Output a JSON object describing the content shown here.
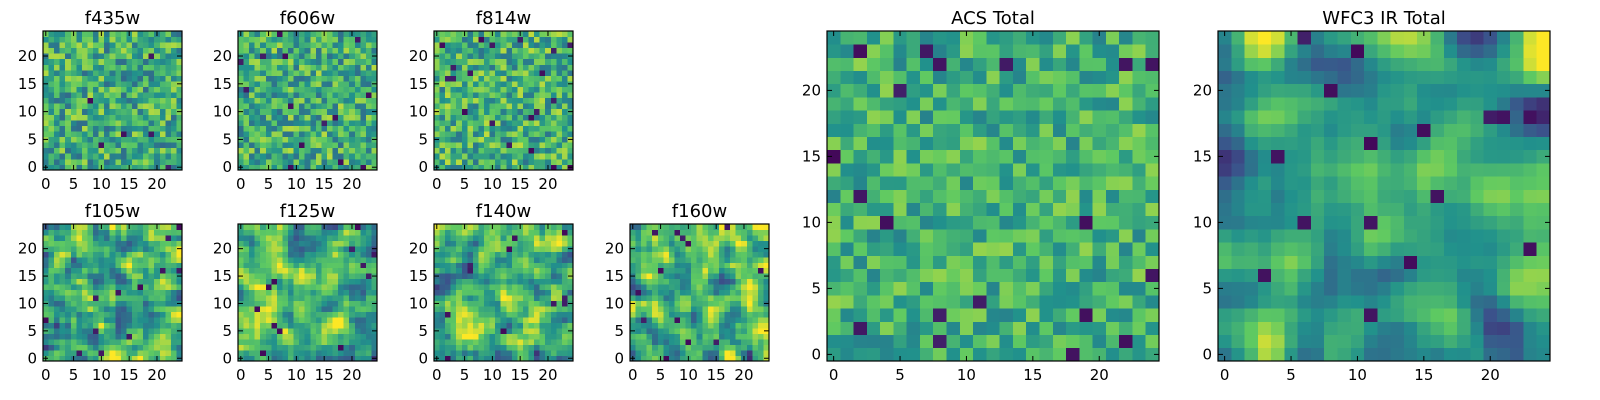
{
  "figure": {
    "background": "#ffffff",
    "colormap": "viridis",
    "colormap_stops": [
      "#440154",
      "#3b528b",
      "#21918c",
      "#5ec962",
      "#fde725"
    ]
  },
  "chart_data": [
    {
      "type": "heatmap",
      "title": "f435w",
      "rows": 25,
      "cols": 25,
      "xlim": [
        -0.5,
        24.5
      ],
      "ylim": [
        -0.5,
        24.5
      ],
      "xticks": [
        0,
        5,
        10,
        15,
        20
      ],
      "yticks": [
        0,
        5,
        10,
        15,
        20
      ],
      "value_range": [
        0,
        1
      ],
      "seed": 11,
      "mean": 0.62,
      "noise": 0.28,
      "smooth": 0
    },
    {
      "type": "heatmap",
      "title": "f606w",
      "rows": 25,
      "cols": 25,
      "xlim": [
        -0.5,
        24.5
      ],
      "ylim": [
        -0.5,
        24.5
      ],
      "xticks": [
        0,
        5,
        10,
        15,
        20
      ],
      "yticks": [
        0,
        5,
        10,
        15,
        20
      ],
      "value_range": [
        0,
        1
      ],
      "seed": 23,
      "mean": 0.62,
      "noise": 0.28,
      "smooth": 0
    },
    {
      "type": "heatmap",
      "title": "f814w",
      "rows": 25,
      "cols": 25,
      "xlim": [
        -0.5,
        24.5
      ],
      "ylim": [
        -0.5,
        24.5
      ],
      "xticks": [
        0,
        5,
        10,
        15,
        20
      ],
      "yticks": [
        0,
        5,
        10,
        15,
        20
      ],
      "value_range": [
        0,
        1
      ],
      "seed": 37,
      "mean": 0.64,
      "noise": 0.28,
      "smooth": 0
    },
    {
      "type": "heatmap",
      "title": "f105w",
      "rows": 25,
      "cols": 25,
      "xlim": [
        -0.5,
        24.5
      ],
      "ylim": [
        -0.5,
        24.5
      ],
      "xticks": [
        0,
        5,
        10,
        15,
        20
      ],
      "yticks": [
        0,
        5,
        10,
        15,
        20
      ],
      "value_range": [
        0,
        1
      ],
      "seed": 41,
      "mean": 0.62,
      "noise": 0.3,
      "smooth": 1
    },
    {
      "type": "heatmap",
      "title": "f125w",
      "rows": 25,
      "cols": 25,
      "xlim": [
        -0.5,
        24.5
      ],
      "ylim": [
        -0.5,
        24.5
      ],
      "xticks": [
        0,
        5,
        10,
        15,
        20
      ],
      "yticks": [
        0,
        5,
        10,
        15,
        20
      ],
      "value_range": [
        0,
        1
      ],
      "seed": 53,
      "mean": 0.64,
      "noise": 0.3,
      "smooth": 1
    },
    {
      "type": "heatmap",
      "title": "f140w",
      "rows": 25,
      "cols": 25,
      "xlim": [
        -0.5,
        24.5
      ],
      "ylim": [
        -0.5,
        24.5
      ],
      "xticks": [
        0,
        5,
        10,
        15,
        20
      ],
      "yticks": [
        0,
        5,
        10,
        15,
        20
      ],
      "value_range": [
        0,
        1
      ],
      "seed": 67,
      "mean": 0.64,
      "noise": 0.3,
      "smooth": 1
    },
    {
      "type": "heatmap",
      "title": "f160w",
      "rows": 25,
      "cols": 25,
      "xlim": [
        -0.5,
        24.5
      ],
      "ylim": [
        -0.5,
        24.5
      ],
      "xticks": [
        0,
        5,
        10,
        15,
        20
      ],
      "yticks": [
        0,
        5,
        10,
        15,
        20
      ],
      "value_range": [
        0,
        1
      ],
      "seed": 79,
      "mean": 0.66,
      "noise": 0.3,
      "smooth": 1
    },
    {
      "type": "heatmap",
      "title": "ACS Total",
      "rows": 25,
      "cols": 25,
      "xlim": [
        -0.5,
        24.5
      ],
      "ylim": [
        -0.5,
        24.5
      ],
      "xticks": [
        0,
        5,
        10,
        15,
        20
      ],
      "yticks": [
        0,
        5,
        10,
        15,
        20
      ],
      "value_range": [
        0,
        1
      ],
      "seed": 97,
      "mean": 0.64,
      "noise": 0.22,
      "smooth": 0
    },
    {
      "type": "heatmap",
      "title": "WFC3 IR Total",
      "rows": 25,
      "cols": 25,
      "xlim": [
        -0.5,
        24.5
      ],
      "ylim": [
        -0.5,
        24.5
      ],
      "xticks": [
        0,
        5,
        10,
        15,
        20
      ],
      "yticks": [
        0,
        5,
        10,
        15,
        20
      ],
      "value_range": [
        0,
        1
      ],
      "seed": 113,
      "mean": 0.56,
      "noise": 0.26,
      "smooth": 2
    }
  ]
}
